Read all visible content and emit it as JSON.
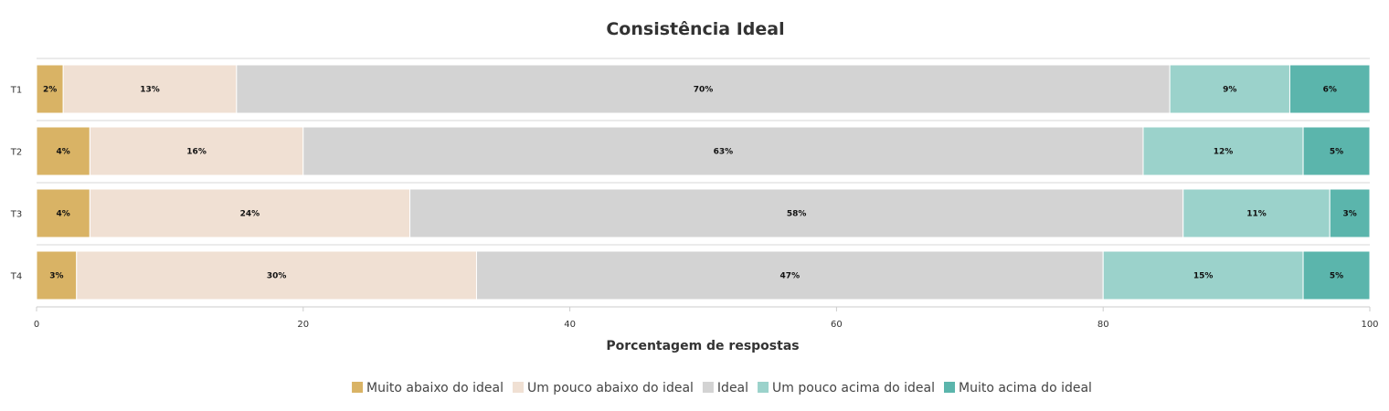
{
  "chart_data": {
    "type": "bar",
    "orientation": "horizontal",
    "stacked": true,
    "title": "Consistência Ideal",
    "xlabel": "Porcentagem de respostas",
    "ylabel": "",
    "xlim": [
      0,
      100
    ],
    "xticks": [
      "0",
      "20",
      "40",
      "60",
      "80",
      "100"
    ],
    "categories": [
      "T1",
      "T2",
      "T3",
      "T4"
    ],
    "legend_position": "bottom",
    "grid": false,
    "series": [
      {
        "name": "Muito abaixo do ideal",
        "color": "#d9b365",
        "values": [
          2,
          4,
          4,
          3
        ]
      },
      {
        "name": "Um pouco abaixo do ideal",
        "color": "#f0e0d3",
        "values": [
          13,
          16,
          24,
          30
        ]
      },
      {
        "name": "Ideal",
        "color": "#d3d3d3",
        "values": [
          70,
          63,
          58,
          47
        ]
      },
      {
        "name": "Um pouco acima do ideal",
        "color": "#9bd2cb",
        "values": [
          9,
          12,
          11,
          15
        ]
      },
      {
        "name": "Muito acima do ideal",
        "color": "#5bb5ac",
        "values": [
          6,
          5,
          3,
          5
        ]
      }
    ]
  }
}
